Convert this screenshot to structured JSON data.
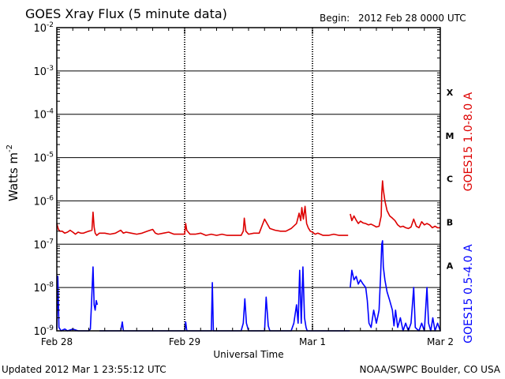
{
  "chart_data": {
    "type": "line",
    "title": "GOES Xray Flux (5 minute data)",
    "begin_label": "Begin:",
    "begin_value": "2012 Feb 28 0000 UTC",
    "ylabel_main": "Watts m",
    "ylabel_exp": "-2",
    "xlabel": "Universal Time",
    "y_scale": "log",
    "ylim": [
      1e-09,
      0.01
    ],
    "xlim": [
      0,
      72
    ],
    "x_unit": "hours since 2012 Feb 28 0000 UTC",
    "y_ticks": [
      {
        "value": 0.01,
        "base": "10",
        "exp": "-2"
      },
      {
        "value": 0.001,
        "base": "10",
        "exp": "-3"
      },
      {
        "value": 0.0001,
        "base": "10",
        "exp": "-4"
      },
      {
        "value": 1e-05,
        "base": "10",
        "exp": "-5"
      },
      {
        "value": 1e-06,
        "base": "10",
        "exp": "-6"
      },
      {
        "value": 1e-07,
        "base": "10",
        "exp": "-7"
      },
      {
        "value": 1e-08,
        "base": "10",
        "exp": "-8"
      },
      {
        "value": 1e-09,
        "base": "10",
        "exp": "-9"
      }
    ],
    "x_ticks": [
      {
        "x": 0,
        "label": "Feb 28"
      },
      {
        "x": 24,
        "label": "Feb 29"
      },
      {
        "x": 48,
        "label": "Mar 1"
      },
      {
        "x": 72,
        "label": "Mar 2"
      }
    ],
    "flare_classes": [
      {
        "label": "X",
        "value": 0.00032
      },
      {
        "label": "M",
        "value": 3.2e-05
      },
      {
        "label": "C",
        "value": 3.2e-06
      },
      {
        "label": "B",
        "value": 3.2e-07
      },
      {
        "label": "A",
        "value": 3.2e-08
      }
    ],
    "grid": true,
    "series": [
      {
        "name": "GOES15 1.0-8.0 A",
        "color": "#dd0000",
        "points": [
          [
            0,
            3e-07
          ],
          [
            0.3,
            2.2e-07
          ],
          [
            0.6,
            2e-07
          ],
          [
            1,
            2e-07
          ],
          [
            1.5,
            1.8e-07
          ],
          [
            2,
            1.9e-07
          ],
          [
            2.5,
            2.1e-07
          ],
          [
            3,
            1.9e-07
          ],
          [
            3.5,
            1.7e-07
          ],
          [
            4,
            1.9e-07
          ],
          [
            4.5,
            1.8e-07
          ],
          [
            5,
            1.8e-07
          ],
          [
            5.5,
            1.9e-07
          ],
          [
            6,
            2e-07
          ],
          [
            6.6,
            2.1e-07
          ],
          [
            6.8,
            5.5e-07
          ],
          [
            7.0,
            2.5e-07
          ],
          [
            7.2,
            1.8e-07
          ],
          [
            7.5,
            1.6e-07
          ],
          [
            8,
            1.8e-07
          ],
          [
            9,
            1.8e-07
          ],
          [
            10,
            1.7e-07
          ],
          [
            11,
            1.8e-07
          ],
          [
            12,
            2.1e-07
          ],
          [
            12.5,
            1.8e-07
          ],
          [
            13,
            1.9e-07
          ],
          [
            14,
            1.8e-07
          ],
          [
            15,
            1.7e-07
          ],
          [
            16,
            1.8e-07
          ],
          [
            17,
            2e-07
          ],
          [
            18,
            2.2e-07
          ],
          [
            18.5,
            1.8e-07
          ],
          [
            19,
            1.7e-07
          ],
          [
            20,
            1.8e-07
          ],
          [
            21,
            1.9e-07
          ],
          [
            22,
            1.7e-07
          ],
          [
            23,
            1.7e-07
          ],
          [
            24,
            1.7e-07
          ],
          [
            24.2,
            3e-07
          ],
          [
            24.4,
            2.1e-07
          ],
          [
            25,
            1.7e-07
          ],
          [
            26,
            1.7e-07
          ],
          [
            27,
            1.8e-07
          ],
          [
            28,
            1.6e-07
          ],
          [
            29,
            1.7e-07
          ],
          [
            30,
            1.6e-07
          ],
          [
            31,
            1.7e-07
          ],
          [
            32,
            1.6e-07
          ],
          [
            33,
            1.6e-07
          ],
          [
            34,
            1.6e-07
          ],
          [
            34.6,
            1.6e-07
          ],
          [
            35,
            2e-07
          ],
          [
            35.2,
            4e-07
          ],
          [
            35.5,
            2e-07
          ],
          [
            36,
            1.7e-07
          ],
          [
            37,
            1.8e-07
          ],
          [
            38,
            1.8e-07
          ],
          [
            39,
            3.8e-07
          ],
          [
            40,
            2.3e-07
          ],
          [
            41,
            2.1e-07
          ],
          [
            42,
            2e-07
          ],
          [
            43,
            2e-07
          ],
          [
            44,
            2.3e-07
          ],
          [
            45,
            3e-07
          ],
          [
            45.5,
            5.2e-07
          ],
          [
            45.8,
            3.5e-07
          ],
          [
            46,
            7e-07
          ],
          [
            46.3,
            3.8e-07
          ],
          [
            46.6,
            7.5e-07
          ],
          [
            46.9,
            3e-07
          ],
          [
            47.2,
            2.4e-07
          ],
          [
            47.6,
            2e-07
          ],
          [
            48,
            1.9e-07
          ],
          [
            48.5,
            1.7e-07
          ],
          [
            49,
            1.8e-07
          ],
          [
            50,
            1.6e-07
          ],
          [
            51,
            1.6e-07
          ],
          [
            52,
            1.7e-07
          ],
          [
            53,
            1.6e-07
          ],
          [
            54,
            1.6e-07
          ],
          [
            54.7,
            1.6e-07
          ],
          null,
          [
            55.1,
            5e-07
          ],
          [
            55.4,
            3.5e-07
          ],
          [
            55.8,
            4.5e-07
          ],
          [
            56.2,
            3.6e-07
          ],
          [
            56.6,
            3e-07
          ],
          [
            57,
            3.4e-07
          ],
          [
            57.5,
            3.1e-07
          ],
          [
            58,
            3e-07
          ],
          [
            58.5,
            2.8e-07
          ],
          [
            59,
            2.9e-07
          ],
          [
            59.5,
            2.7e-07
          ],
          [
            60,
            2.5e-07
          ],
          [
            60.5,
            2.6e-07
          ],
          [
            60.9,
            4.5e-07
          ],
          [
            61.0,
            1.5e-06
          ],
          [
            61.15,
            2.9e-06
          ],
          [
            61.3,
            1.8e-06
          ],
          [
            61.6,
            1e-06
          ],
          [
            62,
            6e-07
          ],
          [
            62.5,
            4.5e-07
          ],
          [
            63,
            4e-07
          ],
          [
            63.5,
            3.5e-07
          ],
          [
            64,
            2.8e-07
          ],
          [
            64.5,
            2.5e-07
          ],
          [
            65,
            2.6e-07
          ],
          [
            65.5,
            2.4e-07
          ],
          [
            66,
            2.3e-07
          ],
          [
            66.5,
            2.5e-07
          ],
          [
            67,
            3.8e-07
          ],
          [
            67.5,
            2.6e-07
          ],
          [
            68,
            2.4e-07
          ],
          [
            68.5,
            3.3e-07
          ],
          [
            69,
            2.8e-07
          ],
          [
            69.5,
            3e-07
          ],
          [
            70,
            2.8e-07
          ],
          [
            70.5,
            2.4e-07
          ],
          [
            71,
            2.6e-07
          ],
          [
            71.5,
            2.4e-07
          ],
          [
            72,
            2.4e-07
          ]
        ]
      },
      {
        "name": "GOES15 0.5-4.0 A",
        "color": "#0000ff",
        "points": [
          [
            0,
            1.1e-09
          ],
          [
            0.2,
            1.8e-08
          ],
          [
            0.4,
            1.2e-09
          ],
          [
            0.8,
            1e-09
          ],
          [
            1.5,
            1.1e-09
          ],
          [
            2,
            1e-09
          ],
          [
            3,
            1.1e-09
          ],
          [
            4,
            1e-09
          ],
          [
            5,
            1e-09
          ],
          [
            6,
            1e-09
          ],
          [
            6.3,
            1.1e-09
          ],
          [
            6.5,
            4e-09
          ],
          [
            6.8,
            3e-08
          ],
          [
            7.0,
            4e-09
          ],
          [
            7.2,
            3e-09
          ],
          [
            7.4,
            5e-09
          ],
          [
            7.6,
            4e-09
          ],
          null,
          [
            8,
            1e-09
          ],
          [
            10,
            1e-09
          ],
          [
            12,
            1e-09
          ],
          [
            12.3,
            1.6e-09
          ],
          [
            12.5,
            1e-09
          ],
          [
            14,
            1e-09
          ],
          [
            16,
            1e-09
          ],
          [
            18,
            1e-09
          ],
          [
            20,
            1e-09
          ],
          [
            22,
            1e-09
          ],
          [
            23,
            1e-09
          ],
          [
            24,
            1e-09
          ],
          [
            24.2,
            1.6e-09
          ],
          [
            24.4,
            1e-09
          ],
          [
            26,
            1e-09
          ],
          [
            28,
            1e-09
          ],
          [
            29,
            1e-09
          ],
          [
            29.2,
            1.3e-08
          ],
          [
            29.4,
            1e-09
          ],
          [
            31,
            1e-09
          ],
          [
            33,
            1e-09
          ],
          [
            34,
            1e-09
          ],
          [
            34.6,
            1e-09
          ],
          [
            35,
            1.5e-09
          ],
          [
            35.3,
            5.5e-09
          ],
          [
            35.6,
            1.5e-09
          ],
          [
            36,
            1e-09
          ],
          [
            38,
            1e-09
          ],
          [
            39,
            1e-09
          ],
          [
            39.3,
            6e-09
          ],
          [
            39.7,
            1.3e-09
          ],
          [
            40,
            1e-09
          ],
          [
            42,
            1e-09
          ],
          [
            44,
            1e-09
          ],
          [
            44.5,
            1.5e-09
          ],
          [
            45,
            4e-09
          ],
          [
            45.3,
            1.5e-09
          ],
          [
            45.6,
            2.5e-08
          ],
          [
            45.9,
            1.5e-09
          ],
          [
            46.2,
            3e-08
          ],
          [
            46.5,
            2e-09
          ],
          [
            46.8,
            1.2e-09
          ],
          [
            47,
            1e-09
          ],
          [
            48,
            1e-09
          ],
          [
            50,
            1e-09
          ],
          [
            52,
            1e-09
          ],
          [
            54,
            1e-09
          ],
          [
            55,
            1e-09
          ],
          null,
          [
            55.1,
            1e-08
          ],
          [
            55.4,
            2.5e-08
          ],
          [
            55.8,
            1.5e-08
          ],
          [
            56.2,
            1.8e-08
          ],
          [
            56.6,
            1.2e-08
          ],
          [
            57,
            1.5e-08
          ],
          [
            57.5,
            1.2e-08
          ],
          [
            58,
            1e-08
          ],
          [
            58.3,
            5e-09
          ],
          [
            58.6,
            1.5e-09
          ],
          [
            59,
            1.2e-09
          ],
          [
            59.5,
            3e-09
          ],
          [
            60,
            1.5e-09
          ],
          [
            60.5,
            3e-09
          ],
          [
            60.8,
            2e-08
          ],
          [
            61.0,
            1e-07
          ],
          [
            61.15,
            1.2e-07
          ],
          [
            61.3,
            3e-08
          ],
          [
            61.6,
            1.5e-08
          ],
          [
            62,
            8e-09
          ],
          [
            62.5,
            5e-09
          ],
          [
            63,
            3e-09
          ],
          [
            63.3,
            1.3e-09
          ],
          [
            63.6,
            3e-09
          ],
          [
            64,
            1.2e-09
          ],
          [
            64.5,
            2e-09
          ],
          [
            65,
            1e-09
          ],
          [
            65.5,
            1.5e-09
          ],
          [
            66,
            1e-09
          ],
          [
            66.5,
            1.5e-09
          ],
          [
            67,
            1e-08
          ],
          [
            67.3,
            1.2e-09
          ],
          [
            67.6,
            1.1e-09
          ],
          [
            68,
            1e-09
          ],
          [
            68.5,
            1.5e-09
          ],
          [
            69,
            1e-09
          ],
          [
            69.5,
            1e-08
          ],
          [
            69.8,
            1.5e-09
          ],
          [
            70.2,
            1e-09
          ],
          [
            70.6,
            2e-09
          ],
          [
            71,
            1e-09
          ],
          [
            71.5,
            1.5e-09
          ],
          [
            72,
            1e-09
          ]
        ]
      }
    ]
  },
  "footer": {
    "updated": "Updated 2012 Mar  1 23:55:12 UTC",
    "credit": "NOAA/SWPC Boulder, CO USA"
  }
}
